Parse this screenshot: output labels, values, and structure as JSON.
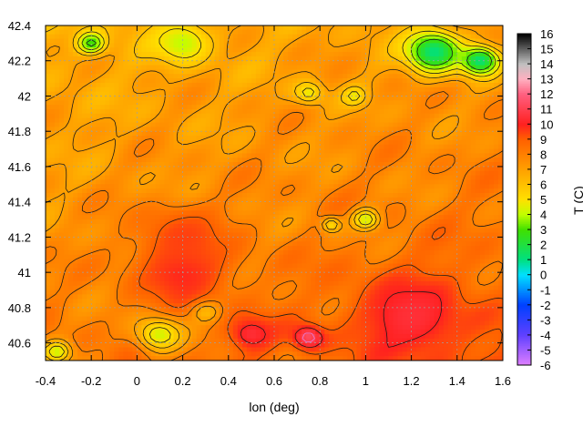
{
  "chart_data": {
    "type": "heatmap",
    "xlabel": "lon (deg)",
    "ylabel": "",
    "colorbar_label": "T (C)",
    "xlim": [
      -0.4,
      1.6
    ],
    "ylim": [
      40.5,
      42.4
    ],
    "xticks": [
      "-0.4",
      "-0.2",
      "0",
      "0.2",
      "0.4",
      "0.6",
      "0.8",
      "1",
      "1.2",
      "1.4",
      "1.6"
    ],
    "xtick_values": [
      -0.4,
      -0.2,
      0,
      0.2,
      0.4,
      0.6,
      0.8,
      1.0,
      1.2,
      1.4,
      1.6
    ],
    "yticks": [
      "40.6",
      "40.8",
      "41",
      "41.2",
      "41.4",
      "41.6",
      "41.8",
      "42",
      "42.2",
      "42.4"
    ],
    "ytick_values": [
      40.6,
      40.8,
      41.0,
      41.2,
      41.4,
      41.6,
      41.8,
      42.0,
      42.2,
      42.4
    ],
    "colorbar_range": [
      -6,
      16
    ],
    "colorbar_ticks": [
      "16",
      "15",
      "14",
      "13",
      "12",
      "11",
      "10",
      "9",
      "8",
      "7",
      "6",
      "5",
      "4",
      "3",
      "2",
      "1",
      "0",
      "-1",
      "-2",
      "-3",
      "-4",
      "-5",
      "-6"
    ],
    "colorbar_tick_values": [
      16,
      15,
      14,
      13,
      12,
      11,
      10,
      9,
      8,
      7,
      6,
      5,
      4,
      3,
      2,
      1,
      0,
      -1,
      -2,
      -3,
      -4,
      -5,
      -6
    ],
    "grid": true,
    "contours": true,
    "colormap": [
      [
        -6,
        "#e080ff"
      ],
      [
        -4,
        "#6040ff"
      ],
      [
        -2,
        "#0040ff"
      ],
      [
        0,
        "#00e0ff"
      ],
      [
        1,
        "#00e080"
      ],
      [
        3,
        "#40e000"
      ],
      [
        4,
        "#c0ff00"
      ],
      [
        5,
        "#ffe000"
      ],
      [
        7,
        "#ffa000"
      ],
      [
        9,
        "#ff6000"
      ],
      [
        10,
        "#ff2020"
      ],
      [
        12,
        "#ff6080"
      ],
      [
        13,
        "#ffb0c0"
      ],
      [
        14,
        "#c0c0c0"
      ],
      [
        15,
        "#606060"
      ],
      [
        16,
        "#000000"
      ]
    ],
    "field_features": [
      {
        "lon": 0.2,
        "lat": 42.3,
        "value": 4.0,
        "spread": 0.12
      },
      {
        "lon": -0.2,
        "lat": 42.3,
        "value": 2.5,
        "spread": 0.06
      },
      {
        "lon": 1.3,
        "lat": 42.25,
        "value": 1.0,
        "spread": 0.12
      },
      {
        "lon": 1.5,
        "lat": 42.2,
        "value": 1.0,
        "spread": 0.08
      },
      {
        "lon": 0.75,
        "lat": 42.02,
        "value": 4.5,
        "spread": 0.06
      },
      {
        "lon": 0.95,
        "lat": 42.0,
        "value": 4.5,
        "spread": 0.05
      },
      {
        "lon": 1.0,
        "lat": 41.3,
        "value": 4.0,
        "spread": 0.06
      },
      {
        "lon": 0.85,
        "lat": 41.27,
        "value": 4.8,
        "spread": 0.04
      },
      {
        "lon": 0.1,
        "lat": 40.65,
        "value": 4.0,
        "spread": 0.1
      },
      {
        "lon": 0.3,
        "lat": 40.78,
        "value": 5.0,
        "spread": 0.06
      },
      {
        "lon": -0.35,
        "lat": 40.55,
        "value": 4.0,
        "spread": 0.06
      },
      {
        "lon": 0.5,
        "lat": 40.65,
        "value": 10.5,
        "spread": 0.1
      },
      {
        "lon": 0.75,
        "lat": 40.63,
        "value": 11.5,
        "spread": 0.07
      },
      {
        "lon": 1.2,
        "lat": 40.75,
        "value": 10.5,
        "spread": 0.25
      },
      {
        "lon": 0.2,
        "lat": 41.0,
        "value": 10.0,
        "spread": 0.2
      },
      {
        "lon": 0.2,
        "lat": 41.2,
        "value": 9.5,
        "spread": 0.18
      }
    ]
  }
}
